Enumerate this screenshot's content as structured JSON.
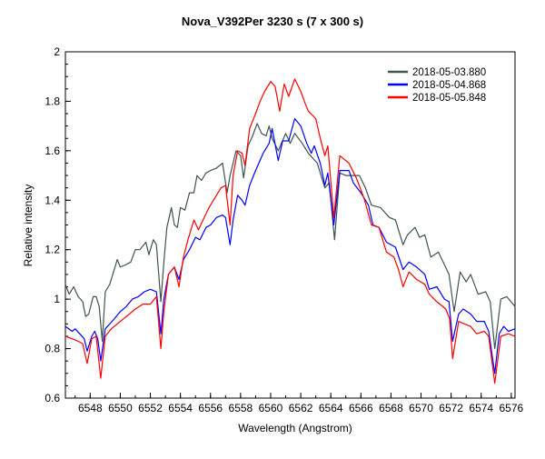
{
  "chart_data": {
    "type": "line",
    "title": "Nova_V392Per  3230 s (7 x 300 s)",
    "xlabel": "Wavelength (Angstrom)",
    "ylabel": "Relative intensity",
    "xlim": [
      6546.35,
      6576.25
    ],
    "ylim": [
      0.6,
      2
    ],
    "xticks": [
      6548,
      6550,
      6552,
      6554,
      6556,
      6558,
      6560,
      6562,
      6564,
      6566,
      6568,
      6570,
      6572,
      6574,
      6576
    ],
    "yticks": [
      0.6,
      0.8,
      1,
      1.2,
      1.4,
      1.6,
      1.8,
      2
    ],
    "ytick_labels": [
      "0.6",
      "0.8",
      "1",
      "1.2",
      "1.4",
      "1.6",
      "1.8",
      "2"
    ],
    "grid": false,
    "legend_position": "top-right",
    "series": [
      {
        "name": "2018-05-03.880",
        "color": "#3d5450",
        "points": [
          [
            6546.35,
            1.06
          ],
          [
            6546.6,
            1.02
          ],
          [
            6546.9,
            1.05
          ],
          [
            6547.2,
            1.01
          ],
          [
            6547.5,
            0.99
          ],
          [
            6547.7,
            0.93
          ],
          [
            6547.9,
            0.94
          ],
          [
            6548.2,
            1.01
          ],
          [
            6548.4,
            1.01
          ],
          [
            6548.6,
            0.97
          ],
          [
            6548.8,
            0.83
          ],
          [
            6549.0,
            1.03
          ],
          [
            6549.3,
            1.06
          ],
          [
            6549.6,
            1.12
          ],
          [
            6549.8,
            1.16
          ],
          [
            6550.0,
            1.13
          ],
          [
            6550.4,
            1.14
          ],
          [
            6550.7,
            1.15
          ],
          [
            6551.0,
            1.2
          ],
          [
            6551.3,
            1.2
          ],
          [
            6551.7,
            1.23
          ],
          [
            6551.9,
            1.18
          ],
          [
            6552.2,
            1.24
          ],
          [
            6552.4,
            1.22
          ],
          [
            6552.7,
            0.99
          ],
          [
            6552.9,
            1.15
          ],
          [
            6553.1,
            1.29
          ],
          [
            6553.4,
            1.37
          ],
          [
            6553.6,
            1.3
          ],
          [
            6553.8,
            1.29
          ],
          [
            6554.0,
            1.37
          ],
          [
            6554.3,
            1.36
          ],
          [
            6554.6,
            1.43
          ],
          [
            6554.9,
            1.43
          ],
          [
            6555.1,
            1.5
          ],
          [
            6555.4,
            1.48
          ],
          [
            6555.7,
            1.51
          ],
          [
            6556.0,
            1.52
          ],
          [
            6556.4,
            1.53
          ],
          [
            6556.8,
            1.55
          ],
          [
            6557.1,
            1.43
          ],
          [
            6557.3,
            1.5
          ],
          [
            6557.7,
            1.6
          ],
          [
            6558.0,
            1.58
          ],
          [
            6558.2,
            1.49
          ],
          [
            6558.5,
            1.62
          ],
          [
            6558.8,
            1.66
          ],
          [
            6559.1,
            1.71
          ],
          [
            6559.4,
            1.67
          ],
          [
            6559.7,
            1.66
          ],
          [
            6559.9,
            1.7
          ],
          [
            6560.1,
            1.65
          ],
          [
            6560.5,
            1.6
          ],
          [
            6561.0,
            1.67
          ],
          [
            6561.3,
            1.63
          ],
          [
            6561.6,
            1.67
          ],
          [
            6562.1,
            1.63
          ],
          [
            6562.5,
            1.59
          ],
          [
            6563.1,
            1.55
          ],
          [
            6563.6,
            1.45
          ],
          [
            6563.9,
            1.47
          ],
          [
            6564.25,
            1.24
          ],
          [
            6564.6,
            1.51
          ],
          [
            6565.0,
            1.5
          ],
          [
            6565.4,
            1.5
          ],
          [
            6565.9,
            1.5
          ],
          [
            6566.3,
            1.45
          ],
          [
            6566.7,
            1.38
          ],
          [
            6567.3,
            1.37
          ],
          [
            6567.9,
            1.33
          ],
          [
            6568.3,
            1.32
          ],
          [
            6568.8,
            1.22
          ],
          [
            6569.1,
            1.26
          ],
          [
            6569.6,
            1.29
          ],
          [
            6569.9,
            1.25
          ],
          [
            6570.25,
            1.26
          ],
          [
            6570.65,
            1.17
          ],
          [
            6571.15,
            1.19
          ],
          [
            6571.55,
            1.14
          ],
          [
            6571.86,
            1.1
          ],
          [
            6572.2,
            0.95
          ],
          [
            6572.6,
            1.11
          ],
          [
            6573.0,
            1.07
          ],
          [
            6573.3,
            1.1
          ],
          [
            6573.8,
            1.02
          ],
          [
            6574.3,
            1.03
          ],
          [
            6574.6,
            0.99
          ],
          [
            6574.9,
            0.8
          ],
          [
            6575.3,
            1.0
          ],
          [
            6575.7,
            1.01
          ],
          [
            6576.25,
            0.97
          ]
        ]
      },
      {
        "name": "2018-05-04.868",
        "color": "#0000ff",
        "points": [
          [
            6546.35,
            0.89
          ],
          [
            6546.8,
            0.87
          ],
          [
            6547.0,
            0.88
          ],
          [
            6547.3,
            0.86
          ],
          [
            6547.6,
            0.84
          ],
          [
            6547.8,
            0.79
          ],
          [
            6548.1,
            0.85
          ],
          [
            6548.3,
            0.87
          ],
          [
            6548.5,
            0.84
          ],
          [
            6548.7,
            0.75
          ],
          [
            6549.0,
            0.88
          ],
          [
            6549.3,
            0.9
          ],
          [
            6549.6,
            0.92
          ],
          [
            6550.0,
            0.95
          ],
          [
            6550.4,
            0.97
          ],
          [
            6550.8,
            1.0
          ],
          [
            6551.2,
            1.01
          ],
          [
            6551.6,
            1.03
          ],
          [
            6552.0,
            1.04
          ],
          [
            6552.4,
            1.03
          ],
          [
            6552.7,
            0.86
          ],
          [
            6552.9,
            1.0
          ],
          [
            6553.2,
            1.1
          ],
          [
            6553.6,
            1.13
          ],
          [
            6553.9,
            1.08
          ],
          [
            6554.2,
            1.16
          ],
          [
            6554.6,
            1.2
          ],
          [
            6555.0,
            1.25
          ],
          [
            6555.3,
            1.24
          ],
          [
            6555.7,
            1.29
          ],
          [
            6556.0,
            1.3
          ],
          [
            6556.4,
            1.33
          ],
          [
            6556.8,
            1.34
          ],
          [
            6557.0,
            1.33
          ],
          [
            6557.3,
            1.22
          ],
          [
            6557.5,
            1.32
          ],
          [
            6557.8,
            1.42
          ],
          [
            6558.1,
            1.4
          ],
          [
            6558.3,
            1.38
          ],
          [
            6558.6,
            1.46
          ],
          [
            6559.0,
            1.52
          ],
          [
            6559.5,
            1.59
          ],
          [
            6559.9,
            1.63
          ],
          [
            6560.1,
            1.69
          ],
          [
            6560.5,
            1.56
          ],
          [
            6560.8,
            1.64
          ],
          [
            6561.2,
            1.64
          ],
          [
            6561.6,
            1.73
          ],
          [
            6562.0,
            1.7
          ],
          [
            6562.4,
            1.63
          ],
          [
            6562.7,
            1.59
          ],
          [
            6562.9,
            1.62
          ],
          [
            6563.3,
            1.55
          ],
          [
            6563.6,
            1.46
          ],
          [
            6563.8,
            1.51
          ],
          [
            6564.2,
            1.3
          ],
          [
            6564.6,
            1.52
          ],
          [
            6565.2,
            1.52
          ],
          [
            6565.5,
            1.47
          ],
          [
            6566.0,
            1.43
          ],
          [
            6566.5,
            1.38
          ],
          [
            6566.8,
            1.3
          ],
          [
            6567.2,
            1.29
          ],
          [
            6567.7,
            1.23
          ],
          [
            6568.3,
            1.21
          ],
          [
            6568.8,
            1.12
          ],
          [
            6569.2,
            1.15
          ],
          [
            6569.7,
            1.13
          ],
          [
            6570.25,
            1.1
          ],
          [
            6570.55,
            1.04
          ],
          [
            6571.05,
            1.05
          ],
          [
            6571.55,
            1.0
          ],
          [
            6571.86,
            0.99
          ],
          [
            6572.1,
            0.83
          ],
          [
            6572.5,
            0.94
          ],
          [
            6572.8,
            0.96
          ],
          [
            6573.3,
            0.94
          ],
          [
            6573.7,
            0.91
          ],
          [
            6574.2,
            0.91
          ],
          [
            6574.5,
            0.87
          ],
          [
            6574.9,
            0.7
          ],
          [
            6575.2,
            0.86
          ],
          [
            6575.5,
            0.89
          ],
          [
            6575.8,
            0.87
          ],
          [
            6576.25,
            0.88
          ]
        ]
      },
      {
        "name": "2018-05-05.848",
        "color": "#ff0000",
        "points": [
          [
            6546.35,
            0.85
          ],
          [
            6546.8,
            0.84
          ],
          [
            6547.2,
            0.83
          ],
          [
            6547.5,
            0.82
          ],
          [
            6547.8,
            0.74
          ],
          [
            6548.1,
            0.84
          ],
          [
            6548.4,
            0.85
          ],
          [
            6548.7,
            0.68
          ],
          [
            6549.0,
            0.85
          ],
          [
            6549.4,
            0.88
          ],
          [
            6549.8,
            0.9
          ],
          [
            6550.2,
            0.92
          ],
          [
            6550.6,
            0.94
          ],
          [
            6551.0,
            0.96
          ],
          [
            6551.5,
            0.98
          ],
          [
            6552.0,
            0.98
          ],
          [
            6552.4,
            1.01
          ],
          [
            6552.7,
            0.8
          ],
          [
            6552.9,
            0.95
          ],
          [
            6553.2,
            1.1
          ],
          [
            6553.6,
            1.13
          ],
          [
            6553.9,
            1.05
          ],
          [
            6554.2,
            1.17
          ],
          [
            6554.5,
            1.24
          ],
          [
            6554.9,
            1.32
          ],
          [
            6555.2,
            1.28
          ],
          [
            6555.5,
            1.32
          ],
          [
            6555.9,
            1.37
          ],
          [
            6556.3,
            1.41
          ],
          [
            6556.7,
            1.45
          ],
          [
            6557.0,
            1.46
          ],
          [
            6557.3,
            1.3
          ],
          [
            6557.5,
            1.5
          ],
          [
            6557.8,
            1.6
          ],
          [
            6558.1,
            1.59
          ],
          [
            6558.3,
            1.54
          ],
          [
            6558.6,
            1.69
          ],
          [
            6559.0,
            1.75
          ],
          [
            6559.3,
            1.8
          ],
          [
            6559.6,
            1.84
          ],
          [
            6560.0,
            1.88
          ],
          [
            6560.3,
            1.86
          ],
          [
            6560.6,
            1.76
          ],
          [
            6560.9,
            1.87
          ],
          [
            6561.2,
            1.82
          ],
          [
            6561.6,
            1.89
          ],
          [
            6562.0,
            1.84
          ],
          [
            6562.3,
            1.79
          ],
          [
            6562.5,
            1.76
          ],
          [
            6563.0,
            1.73
          ],
          [
            6563.3,
            1.65
          ],
          [
            6563.6,
            1.58
          ],
          [
            6563.8,
            1.62
          ],
          [
            6564.2,
            1.33
          ],
          [
            6564.6,
            1.58
          ],
          [
            6565.2,
            1.55
          ],
          [
            6565.7,
            1.49
          ],
          [
            6566.2,
            1.41
          ],
          [
            6566.7,
            1.3
          ],
          [
            6567.2,
            1.29
          ],
          [
            6567.7,
            1.19
          ],
          [
            6568.2,
            1.17
          ],
          [
            6568.5,
            1.12
          ],
          [
            6568.8,
            1.05
          ],
          [
            6569.2,
            1.11
          ],
          [
            6569.7,
            1.08
          ],
          [
            6570.25,
            1.06
          ],
          [
            6570.55,
            1.02
          ],
          [
            6571.05,
            0.99
          ],
          [
            6571.65,
            0.96
          ],
          [
            6571.9,
            0.92
          ],
          [
            6572.1,
            0.76
          ],
          [
            6572.5,
            0.91
          ],
          [
            6572.9,
            0.9
          ],
          [
            6573.3,
            0.89
          ],
          [
            6573.7,
            0.86
          ],
          [
            6574.2,
            0.87
          ],
          [
            6574.5,
            0.85
          ],
          [
            6574.9,
            0.66
          ],
          [
            6575.3,
            0.85
          ],
          [
            6575.8,
            0.86
          ],
          [
            6576.25,
            0.85
          ]
        ]
      }
    ]
  }
}
